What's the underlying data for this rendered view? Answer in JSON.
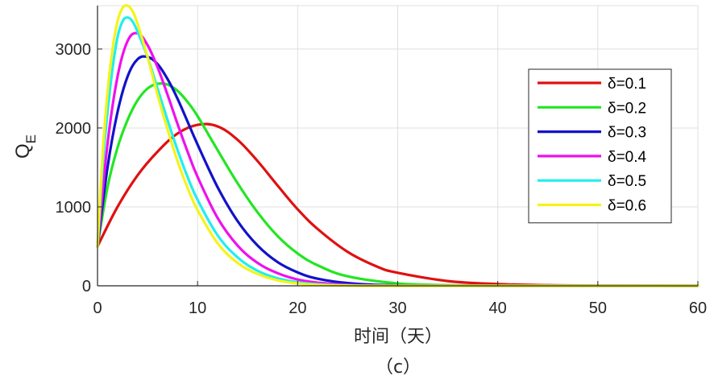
{
  "chart_data": {
    "type": "line",
    "title": "",
    "xlabel": "时间（天）",
    "ylabel": "Q",
    "ylabel_subscript": "E",
    "caption": "（c）",
    "xlim": [
      0,
      60
    ],
    "ylim": [
      0,
      3550
    ],
    "xticks": [
      0,
      10,
      20,
      30,
      40,
      50,
      60
    ],
    "yticks": [
      0,
      1000,
      2000,
      3000
    ],
    "grid": true,
    "legend_position": "right",
    "series": [
      {
        "name": "δ=0.1",
        "color": "#e01010",
        "x": [
          0,
          2,
          4,
          6,
          8,
          10,
          12,
          14,
          16,
          18,
          20,
          22,
          25,
          28,
          30,
          35,
          40,
          45,
          50,
          60
        ],
        "y": [
          500,
          1000,
          1400,
          1700,
          1930,
          2040,
          2020,
          1850,
          1580,
          1270,
          970,
          720,
          430,
          240,
          165,
          60,
          22,
          8,
          3,
          0
        ]
      },
      {
        "name": "δ=0.2",
        "color": "#22e622",
        "x": [
          0,
          1,
          2,
          3,
          4,
          5,
          6,
          7,
          8,
          9,
          10,
          12,
          14,
          16,
          18,
          20,
          22,
          25,
          30,
          35,
          40,
          50,
          60
        ],
        "y": [
          500,
          1250,
          1750,
          2100,
          2350,
          2500,
          2560,
          2550,
          2470,
          2330,
          2150,
          1720,
          1300,
          930,
          630,
          410,
          260,
          120,
          30,
          8,
          2,
          0,
          0
        ]
      },
      {
        "name": "δ=0.3",
        "color": "#1212c8",
        "x": [
          0,
          1,
          2,
          3,
          4,
          5,
          6,
          7,
          8,
          9,
          10,
          12,
          14,
          16,
          18,
          20,
          22,
          25,
          30,
          40,
          60
        ],
        "y": [
          500,
          1500,
          2200,
          2650,
          2870,
          2900,
          2810,
          2620,
          2370,
          2080,
          1790,
          1250,
          820,
          510,
          300,
          170,
          90,
          35,
          5,
          0,
          0
        ]
      },
      {
        "name": "δ=0.4",
        "color": "#ee10ee",
        "x": [
          0,
          1,
          2,
          3,
          4,
          5,
          6,
          7,
          8,
          9,
          10,
          12,
          14,
          16,
          18,
          20,
          22,
          25,
          30,
          40,
          60
        ],
        "y": [
          500,
          1800,
          2650,
          3100,
          3200,
          3050,
          2770,
          2420,
          2050,
          1700,
          1380,
          860,
          510,
          290,
          160,
          80,
          40,
          12,
          0,
          0,
          0
        ]
      },
      {
        "name": "δ=0.5",
        "color": "#22eeee",
        "x": [
          0,
          0.5,
          1,
          1.5,
          2,
          2.5,
          3,
          3.5,
          4,
          5,
          6,
          7,
          8,
          9,
          10,
          12,
          14,
          16,
          18,
          20,
          22,
          25,
          30,
          60
        ],
        "y": [
          500,
          1500,
          2200,
          2750,
          3150,
          3350,
          3400,
          3350,
          3220,
          2900,
          2500,
          2100,
          1720,
          1380,
          1090,
          640,
          360,
          190,
          95,
          45,
          20,
          5,
          0,
          0
        ]
      },
      {
        "name": "δ=0.6",
        "color": "#f4f41a",
        "x": [
          0,
          0.5,
          1,
          1.5,
          2,
          2.5,
          3,
          3.5,
          4,
          5,
          6,
          7,
          8,
          9,
          10,
          12,
          14,
          16,
          18,
          20,
          22,
          25,
          30,
          60
        ],
        "y": [
          500,
          1650,
          2450,
          3000,
          3350,
          3520,
          3550,
          3480,
          3320,
          2900,
          2420,
          1980,
          1580,
          1240,
          960,
          540,
          290,
          150,
          70,
          30,
          12,
          3,
          0,
          0
        ]
      }
    ]
  }
}
